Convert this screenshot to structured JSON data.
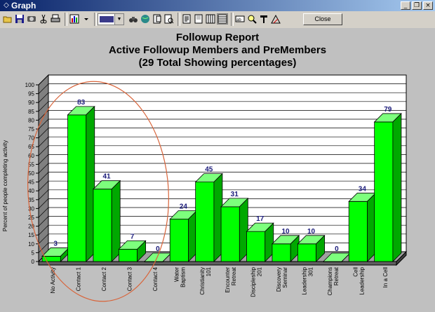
{
  "window": {
    "title": "Graph",
    "close_label": "Close",
    "controls": [
      "minimize-icon",
      "restore-icon",
      "close-icon"
    ]
  },
  "toolbar": {
    "icons": [
      "open-folder-icon",
      "save-icon",
      "copy-icon",
      "cut-icon",
      "print-icon",
      "chart-type-icon",
      "dropdown-arrow-icon",
      "color-combo",
      "binoculars-icon",
      "globe-icon",
      "page-icon",
      "preview-icon",
      "text-icon",
      "grid-icon",
      "list-icon",
      "table-icon",
      "zoom-icon",
      "tools-icon",
      "wizard-icon"
    ]
  },
  "chart_data": {
    "type": "bar",
    "title": "Followup Report",
    "subtitle_lines": [
      "Active Followup Members and PreMembers",
      "(29 Total  Showing percentages)"
    ],
    "ylabel": "Percent of people completing activity",
    "xlabel": "",
    "ylim": [
      0,
      100
    ],
    "yticks": [
      0,
      5,
      10,
      15,
      20,
      25,
      30,
      35,
      40,
      45,
      50,
      55,
      60,
      65,
      70,
      75,
      80,
      85,
      90,
      95,
      100
    ],
    "grid": true,
    "categories": [
      [
        "No Activity"
      ],
      [
        "Contact 1"
      ],
      [
        "Contact 2"
      ],
      [
        "Contact 3"
      ],
      [
        "Contact 4"
      ],
      [
        "Water",
        "Baptism"
      ],
      [
        "Christianity",
        "101"
      ],
      [
        "Encounter",
        "Retreat"
      ],
      [
        "Discipleship",
        "201"
      ],
      [
        "Discovery",
        "Seminar"
      ],
      [
        "Leadership",
        "301"
      ],
      [
        "Champions",
        "Retreat"
      ],
      [
        "Cell",
        "Leadership"
      ],
      [
        "In a Cell"
      ]
    ],
    "values": [
      3,
      83,
      41,
      7,
      0,
      24,
      45,
      31,
      17,
      10,
      10,
      0,
      34,
      79
    ],
    "bar_color": "#00ff00",
    "value_label_color": "#1a1a7a",
    "annotation": "red-ellipse-around-contact-bars"
  }
}
